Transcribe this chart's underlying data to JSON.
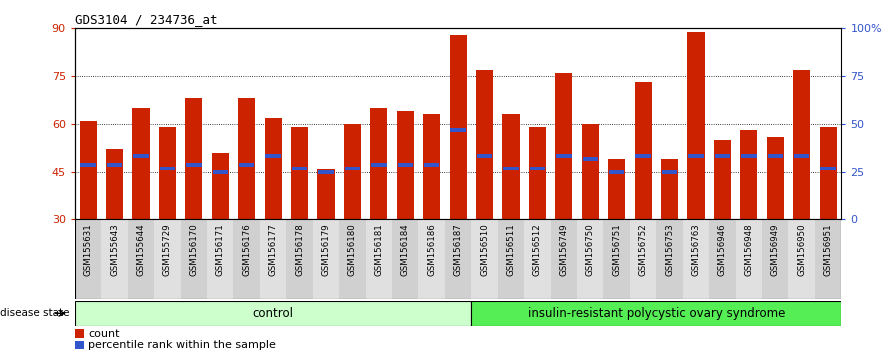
{
  "title": "GDS3104 / 234736_at",
  "samples": [
    "GSM155631",
    "GSM155643",
    "GSM155644",
    "GSM155729",
    "GSM156170",
    "GSM156171",
    "GSM156176",
    "GSM156177",
    "GSM156178",
    "GSM156179",
    "GSM156180",
    "GSM156181",
    "GSM156184",
    "GSM156186",
    "GSM156187",
    "GSM156510",
    "GSM156511",
    "GSM156512",
    "GSM156749",
    "GSM156750",
    "GSM156751",
    "GSM156752",
    "GSM156753",
    "GSM156763",
    "GSM156946",
    "GSM156948",
    "GSM156949",
    "GSM156950",
    "GSM156951"
  ],
  "bar_heights": [
    61,
    52,
    65,
    59,
    68,
    51,
    68,
    62,
    59,
    46,
    60,
    65,
    64,
    63,
    88,
    77,
    63,
    59,
    76,
    60,
    49,
    73,
    49,
    89,
    55,
    58,
    56,
    77,
    59
  ],
  "percentile_values": [
    47,
    47,
    50,
    46,
    47,
    45,
    47,
    50,
    46,
    45,
    46,
    47,
    47,
    47,
    58,
    50,
    46,
    46,
    50,
    49,
    45,
    50,
    45,
    50,
    50,
    50,
    50,
    50,
    46
  ],
  "n_control": 15,
  "n_pcos": 14,
  "bar_color": "#cc2200",
  "percentile_color": "#3355cc",
  "control_bg": "#ccffcc",
  "pcos_bg": "#55ee55",
  "ymin": 30,
  "ymax": 90,
  "yticks": [
    30,
    45,
    60,
    75,
    90
  ],
  "ytick_labels": [
    "30",
    "45",
    "60",
    "75",
    "90"
  ],
  "right_ytick_labels": [
    "0",
    "25",
    "50",
    "75",
    "100%"
  ],
  "bar_width": 0.65,
  "xlabel_control": "control",
  "xlabel_pcos": "insulin-resistant polycystic ovary syndrome",
  "legend_count": "count",
  "legend_percentile": "percentile rank within the sample",
  "disease_state_label": "disease state"
}
